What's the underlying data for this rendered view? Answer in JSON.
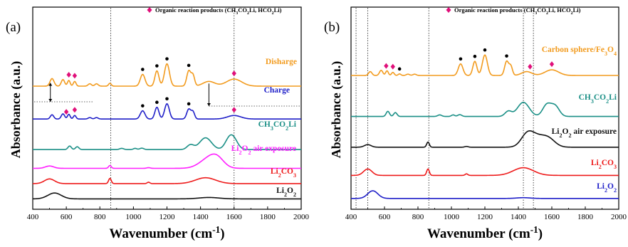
{
  "chart_data": [
    {
      "type": "line",
      "panel": "(a)",
      "xlabel": "Wavenumber (cm-1)",
      "ylabel": "Absorbance (a.u.)",
      "xlim": [
        400,
        2000
      ],
      "xticks": [
        400,
        600,
        800,
        1000,
        1200,
        1400,
        1600,
        1800,
        2000
      ],
      "legend": {
        "marker": "diamond",
        "color": "#e0107a",
        "text": "Organic reaction products (CH3CO2Li, HCO2Li)"
      },
      "vlines": [
        865,
        1600
      ],
      "series": [
        {
          "name": "Disharge",
          "color": "#f29b1e",
          "offset": 5.0,
          "peaks": [
            [
              515,
              0.32,
              12
            ],
            [
              580,
              0.28,
              10
            ],
            [
              615,
              0.24,
              8
            ],
            [
              650,
              0.2,
              8
            ],
            [
              740,
              0.1,
              10
            ],
            [
              780,
              0.1,
              10
            ],
            [
              860,
              0.12,
              8
            ],
            [
              1055,
              0.5,
              14
            ],
            [
              1140,
              0.65,
              12
            ],
            [
              1200,
              0.95,
              15
            ],
            [
              1330,
              0.65,
              12
            ],
            [
              1355,
              0.45,
              10
            ],
            [
              1450,
              0.2,
              35
            ],
            [
              1600,
              0.3,
              45
            ]
          ],
          "markers_circle": [
            1055,
            1140,
            1200,
            1330
          ],
          "markers_diamond": [
            615,
            650,
            1600
          ]
        },
        {
          "name": "Charge",
          "color": "#1f1fc8",
          "offset": 3.6,
          "peaks": [
            [
              515,
              0.18,
              10
            ],
            [
              580,
              0.22,
              10
            ],
            [
              615,
              0.2,
              8
            ],
            [
              650,
              0.15,
              8
            ],
            [
              740,
              0.06,
              10
            ],
            [
              780,
              0.06,
              10
            ],
            [
              1055,
              0.35,
              14
            ],
            [
              1140,
              0.5,
              12
            ],
            [
              1200,
              0.65,
              14
            ],
            [
              1330,
              0.42,
              12
            ],
            [
              1355,
              0.3,
              10
            ],
            [
              1600,
              0.15,
              40
            ]
          ],
          "markers_circle": [
            1055,
            1140,
            1200,
            1330
          ],
          "markers_diamond": [
            600,
            650,
            1600
          ]
        },
        {
          "name": "CH3CO2Li",
          "color": "#1a8f86",
          "offset": 2.3,
          "peaks": [
            [
              620,
              0.15,
              10
            ],
            [
              665,
              0.12,
              10
            ],
            [
              930,
              0.05,
              12
            ],
            [
              1010,
              0.05,
              10
            ],
            [
              1050,
              0.06,
              12
            ],
            [
              1340,
              0.2,
              20
            ],
            [
              1430,
              0.5,
              35
            ],
            [
              1570,
              0.4,
              25
            ],
            [
              1600,
              0.35,
              25
            ]
          ]
        },
        {
          "name": "Li2O2 air exposure",
          "color": "#ff1fff",
          "offset": 1.5,
          "peaks": [
            [
              500,
              0.1,
              25
            ],
            [
              860,
              0.12,
              8
            ],
            [
              1090,
              0.03,
              10
            ],
            [
              1450,
              0.4,
              55
            ],
            [
              1500,
              0.3,
              40
            ]
          ]
        },
        {
          "name": "Li2CO3",
          "color": "#ee1a1a",
          "offset": 0.85,
          "peaks": [
            [
              500,
              0.2,
              30
            ],
            [
              860,
              0.22,
              8
            ],
            [
              1090,
              0.06,
              8
            ],
            [
              1430,
              0.25,
              60
            ]
          ]
        },
        {
          "name": "Li2O2",
          "color": "#111111",
          "offset": 0.2,
          "peaks": [
            [
              530,
              0.25,
              40
            ],
            [
              1450,
              0.06,
              60
            ]
          ]
        }
      ]
    },
    {
      "type": "line",
      "panel": "(b)",
      "xlabel": "Wavenumber (cm-1)",
      "ylabel": "Absorbance (a.u.)",
      "xlim": [
        400,
        2000
      ],
      "xticks": [
        400,
        600,
        800,
        1000,
        1200,
        1400,
        1600,
        1800,
        2000
      ],
      "legend": {
        "marker": "diamond",
        "color": "#e0107a",
        "text": "Organic reaction products (CH3CO2Li, HCO2Li)"
      },
      "vlines": [
        430,
        500,
        865,
        1430,
        1490
      ],
      "series": [
        {
          "name": "Carbon sphere/Fe3O4",
          "color": "#f29b1e",
          "offset": 5.0,
          "peaks": [
            [
              515,
              0.15,
              10
            ],
            [
              580,
              0.2,
              10
            ],
            [
              615,
              0.18,
              8
            ],
            [
              650,
              0.12,
              8
            ],
            [
              690,
              0.06,
              8
            ],
            [
              740,
              0.05,
              10
            ],
            [
              780,
              0.05,
              10
            ],
            [
              1055,
              0.45,
              14
            ],
            [
              1140,
              0.55,
              12
            ],
            [
              1200,
              0.8,
              15
            ],
            [
              1330,
              0.55,
              12
            ],
            [
              1355,
              0.35,
              10
            ],
            [
              1450,
              0.15,
              30
            ],
            [
              1600,
              0.22,
              40
            ]
          ],
          "markers_circle": [
            690,
            1055,
            1140,
            1200,
            1330
          ],
          "markers_diamond": [
            610,
            650,
            1470,
            1600
          ]
        },
        {
          "name": "CH3CO2Li",
          "color": "#1a8f86",
          "offset": 3.4,
          "peaks": [
            [
              620,
              0.2,
              10
            ],
            [
              665,
              0.15,
              10
            ],
            [
              930,
              0.06,
              12
            ],
            [
              1010,
              0.06,
              10
            ],
            [
              1050,
              0.07,
              12
            ],
            [
              1340,
              0.2,
              20
            ],
            [
              1430,
              0.55,
              35
            ],
            [
              1570,
              0.45,
              25
            ],
            [
              1620,
              0.4,
              25
            ]
          ]
        },
        {
          "name": "Li2O2 air exposure",
          "color": "#111111",
          "offset": 2.2,
          "peaks": [
            [
              500,
              0.1,
              20
            ],
            [
              860,
              0.2,
              8
            ],
            [
              1090,
              0.03,
              10
            ],
            [
              1450,
              0.35,
              35
            ],
            [
              1500,
              0.4,
              50
            ],
            [
              1580,
              0.3,
              40
            ]
          ]
        },
        {
          "name": "Li2CO3",
          "color": "#ee1a1a",
          "offset": 1.1,
          "peaks": [
            [
              500,
              0.25,
              25
            ],
            [
              860,
              0.25,
              8
            ],
            [
              1090,
              0.06,
              8
            ],
            [
              1430,
              0.3,
              60
            ]
          ]
        },
        {
          "name": "Li2O2",
          "color": "#1f1fc8",
          "offset": 0.2,
          "peaks": [
            [
              530,
              0.3,
              30
            ],
            [
              1430,
              0.03,
              40
            ]
          ]
        }
      ]
    }
  ]
}
